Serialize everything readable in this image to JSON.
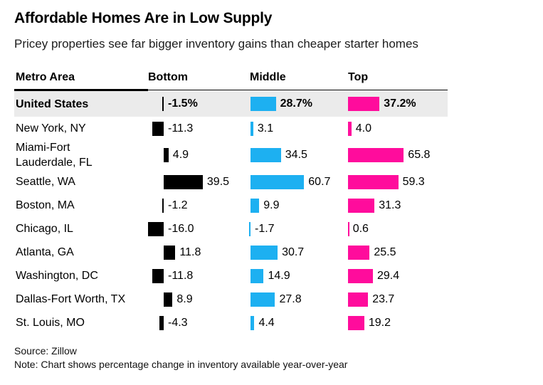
{
  "title": "Affordable Homes Are in Low Supply",
  "subtitle": "Pricey properties see far bigger inventory gains than cheaper starter homes",
  "colors": {
    "bottom_bar": "#000000",
    "middle_bar": "#1db0f1",
    "top_bar": "#ff0c9c",
    "highlight_row_bg": "#ebebeb",
    "rule": "#000000"
  },
  "table": {
    "columns": [
      {
        "id": "metro",
        "label": "Metro Area"
      },
      {
        "id": "bottom",
        "label": "Bottom"
      },
      {
        "id": "middle",
        "label": "Middle"
      },
      {
        "id": "top",
        "label": "Top"
      }
    ],
    "rows": [
      {
        "metro": "United States",
        "highlight": true,
        "labels": [
          "-1.5%",
          "28.7%",
          "37.2%"
        ]
      },
      {
        "metro": "New York, NY",
        "labels": [
          "-11.3",
          "3.1",
          "4.0"
        ]
      },
      {
        "metro": "Miami-Fort Lauderdale, FL",
        "metro_lines": [
          "Miami-Fort",
          "Lauderdale, FL"
        ],
        "labels": [
          "4.9",
          "34.5",
          "65.8"
        ]
      },
      {
        "metro": "Seattle, WA",
        "labels": [
          "39.5",
          "60.7",
          "59.3"
        ]
      },
      {
        "metro": "Boston, MA",
        "labels": [
          "-1.2",
          "9.9",
          "31.3"
        ]
      },
      {
        "metro": "Chicago, IL",
        "labels": [
          "-16.0",
          "-1.7",
          "0.6"
        ]
      },
      {
        "metro": "Atlanta, GA",
        "labels": [
          "11.8",
          "30.7",
          "25.5"
        ]
      },
      {
        "metro": "Washington, DC",
        "labels": [
          "-11.8",
          "14.9",
          "29.4"
        ]
      },
      {
        "metro": "Dallas-Fort Worth, TX",
        "labels": [
          "8.9",
          "27.8",
          "23.7"
        ]
      },
      {
        "metro": "St. Louis, MO",
        "labels": [
          "-4.3",
          "4.4",
          "19.2"
        ]
      }
    ]
  },
  "chart_data": {
    "type": "bar",
    "orientation": "horizontal",
    "title": "Affordable Homes Are in Low Supply",
    "subtitle": "Pricey properties see far bigger inventory gains than cheaper starter homes",
    "unit": "percent change in inventory available year-over-year",
    "categories": [
      "United States",
      "New York, NY",
      "Miami-Fort Lauderdale, FL",
      "Seattle, WA",
      "Boston, MA",
      "Chicago, IL",
      "Atlanta, GA",
      "Washington, DC",
      "Dallas-Fort Worth, TX",
      "St. Louis, MO"
    ],
    "series": [
      {
        "name": "Bottom",
        "color": "#000000",
        "values": [
          -1.5,
          -11.3,
          4.9,
          39.5,
          -1.2,
          -16.0,
          11.8,
          -11.8,
          8.9,
          -4.3
        ]
      },
      {
        "name": "Middle",
        "color": "#1db0f1",
        "values": [
          28.7,
          3.1,
          34.5,
          60.7,
          9.9,
          -1.7,
          30.7,
          14.9,
          27.8,
          4.4
        ]
      },
      {
        "name": "Top",
        "color": "#ff0c9c",
        "values": [
          37.2,
          4.0,
          65.8,
          59.3,
          31.3,
          0.6,
          25.5,
          29.4,
          23.7,
          19.2
        ]
      }
    ],
    "value_labels": true,
    "grid": false,
    "legend": "column headers (Bottom / Middle / Top)",
    "axis_lines": "none",
    "highlighted_category": "United States"
  },
  "footer": {
    "source": "Source: Zillow",
    "note": "Note: Chart shows percentage change in inventory available year-over-year"
  }
}
